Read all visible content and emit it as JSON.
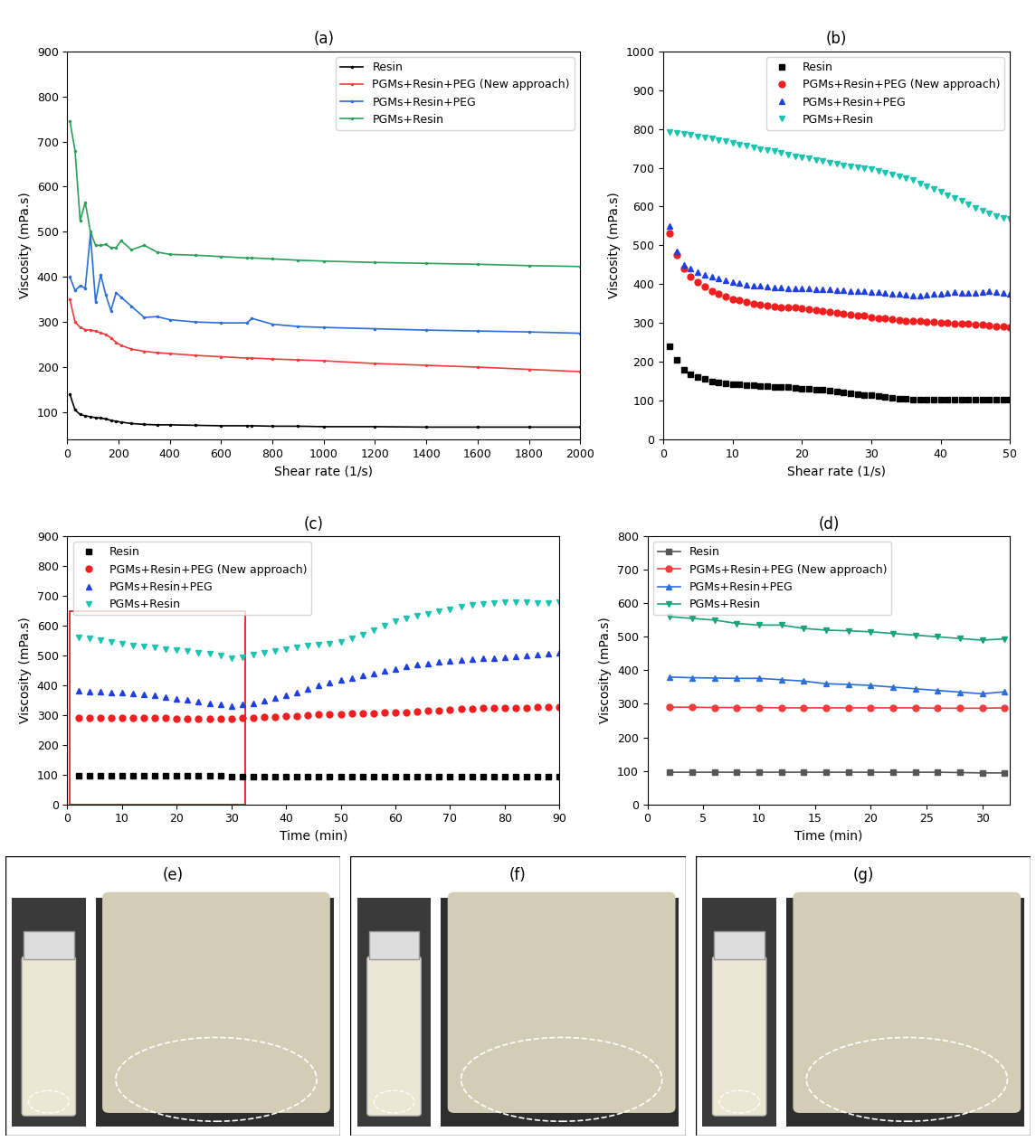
{
  "chart_data": [
    {
      "type": "line",
      "title": "(a)",
      "xlabel": "Shear rate (1/s)",
      "ylabel": "Viscosity (mPa.s)",
      "xlim": [
        0,
        2000
      ],
      "xticks": [
        0,
        200,
        400,
        600,
        800,
        1000,
        1200,
        1400,
        1600,
        1800,
        2000
      ],
      "ylim": [
        40,
        900
      ],
      "yticks": [
        100,
        200,
        300,
        400,
        500,
        600,
        700,
        800,
        900
      ],
      "legend": "upper right",
      "x": [
        10,
        30,
        50,
        70,
        90,
        110,
        130,
        150,
        170,
        190,
        210,
        250,
        300,
        350,
        400,
        500,
        600,
        700,
        720,
        800,
        900,
        1000,
        1200,
        1400,
        1600,
        1800,
        2000
      ],
      "series": [
        {
          "name": "Resin",
          "color": "#000000",
          "marker": "point",
          "values": [
            140,
            105,
            95,
            92,
            90,
            88,
            87,
            85,
            82,
            80,
            78,
            75,
            73,
            72,
            72,
            71,
            70,
            70,
            70,
            69,
            69,
            68,
            68,
            67,
            67,
            67,
            67
          ]
        },
        {
          "name": "PGMs+Resin+PEG (New approach)",
          "color": "#f03c3c",
          "marker": "point",
          "values": [
            350,
            300,
            288,
            283,
            282,
            280,
            276,
            272,
            265,
            255,
            248,
            240,
            235,
            232,
            230,
            226,
            223,
            220,
            220,
            218,
            216,
            214,
            208,
            204,
            200,
            195,
            190
          ]
        },
        {
          "name": "PGMs+Resin+PEG",
          "color": "#2b6fd6",
          "marker": "point",
          "values": [
            400,
            370,
            380,
            375,
            495,
            345,
            405,
            360,
            325,
            365,
            355,
            335,
            310,
            312,
            305,
            300,
            298,
            298,
            308,
            295,
            290,
            288,
            285,
            282,
            280,
            278,
            275
          ]
        },
        {
          "name": "PGMs+Resin",
          "color": "#2ca05a",
          "marker": "point",
          "values": [
            745,
            680,
            525,
            565,
            500,
            470,
            470,
            472,
            465,
            465,
            480,
            460,
            470,
            455,
            450,
            448,
            445,
            442,
            442,
            440,
            437,
            435,
            432,
            430,
            428,
            425,
            423
          ]
        }
      ]
    },
    {
      "type": "scatter",
      "title": "(b)",
      "xlabel": "Shear rate (1/s)",
      "ylabel": "Viscosity (mPa.s)",
      "xlim": [
        0,
        50
      ],
      "xticks": [
        0,
        10,
        20,
        30,
        40,
        50
      ],
      "ylim": [
        0,
        1000
      ],
      "yticks": [
        0,
        100,
        200,
        300,
        400,
        500,
        600,
        700,
        800,
        900,
        1000
      ],
      "legend": "upper right",
      "x": [
        1,
        2,
        3,
        4,
        5,
        6,
        7,
        8,
        9,
        10,
        11,
        12,
        13,
        14,
        15,
        16,
        17,
        18,
        19,
        20,
        21,
        22,
        23,
        24,
        25,
        26,
        27,
        28,
        29,
        30,
        31,
        32,
        33,
        34,
        35,
        36,
        37,
        38,
        39,
        40,
        41,
        42,
        43,
        44,
        45,
        46,
        47,
        48,
        49,
        50
      ],
      "series": [
        {
          "name": "Resin",
          "color": "#000000",
          "marker": "square",
          "values": [
            240,
            205,
            180,
            168,
            160,
            155,
            150,
            147,
            145,
            143,
            142,
            140,
            139,
            138,
            137,
            136,
            135,
            134,
            133,
            131,
            130,
            128,
            127,
            125,
            123,
            121,
            119,
            117,
            115,
            113,
            111,
            109,
            107,
            105,
            104,
            103,
            102,
            102,
            102,
            102,
            102,
            102,
            102,
            102,
            102,
            102,
            102,
            102,
            102,
            102
          ]
        },
        {
          "name": "PGMs+Resin+PEG (New approach)",
          "color": "#f01e1e",
          "marker": "circle",
          "values": [
            530,
            475,
            440,
            420,
            405,
            393,
            383,
            375,
            368,
            362,
            358,
            354,
            350,
            347,
            345,
            343,
            341,
            340,
            339,
            337,
            335,
            333,
            330,
            328,
            326,
            324,
            322,
            320,
            318,
            315,
            313,
            311,
            310,
            308,
            306,
            305,
            304,
            303,
            302,
            301,
            300,
            299,
            298,
            297,
            296,
            295,
            294,
            292,
            290,
            289
          ]
        },
        {
          "name": "PGMs+Resin+PEG",
          "color": "#1f3fe0",
          "marker": "triangle_up",
          "values": [
            550,
            485,
            450,
            440,
            432,
            425,
            420,
            415,
            410,
            406,
            402,
            399,
            397,
            395,
            393,
            392,
            391,
            390,
            389,
            388,
            388,
            387,
            386,
            386,
            385,
            384,
            383,
            382,
            381,
            380,
            379,
            378,
            376,
            374,
            372,
            371,
            371,
            372,
            374,
            376,
            378,
            379,
            378,
            377,
            378,
            380,
            381,
            380,
            378,
            376
          ]
        },
        {
          "name": "PGMs+Resin",
          "color": "#1ac4b0",
          "marker": "triangle_down",
          "values": [
            793,
            790,
            787,
            784,
            781,
            778,
            775,
            771,
            768,
            764,
            760,
            756,
            752,
            748,
            745,
            742,
            738,
            734,
            730,
            727,
            724,
            721,
            717,
            714,
            710,
            707,
            704,
            701,
            699,
            697,
            693,
            688,
            683,
            679,
            674,
            668,
            660,
            652,
            645,
            638,
            630,
            622,
            614,
            605,
            597,
            590,
            582,
            576,
            571,
            568
          ]
        }
      ]
    },
    {
      "type": "scatter",
      "title": "(c)",
      "xlabel": "Time (min)",
      "ylabel": "Viscosity (mPa.s)",
      "xlim": [
        0,
        90
      ],
      "xticks": [
        0,
        10,
        20,
        30,
        40,
        50,
        60,
        70,
        80,
        90
      ],
      "ylim": [
        0,
        900
      ],
      "yticks": [
        0,
        100,
        200,
        300,
        400,
        500,
        600,
        700,
        800,
        900
      ],
      "legend": "upper left",
      "x": [
        2,
        4,
        6,
        8,
        10,
        12,
        14,
        16,
        18,
        20,
        22,
        24,
        26,
        28,
        30,
        32,
        34,
        36,
        38,
        40,
        42,
        44,
        46,
        48,
        50,
        52,
        54,
        56,
        58,
        60,
        62,
        64,
        66,
        68,
        70,
        72,
        74,
        76,
        78,
        80,
        82,
        84,
        86,
        88,
        90
      ],
      "series": [
        {
          "name": "Resin",
          "color": "#000000",
          "marker": "square",
          "values": [
            97,
            97,
            97,
            97,
            97,
            97,
            97,
            96,
            96,
            96,
            96,
            96,
            96,
            95,
            94,
            94,
            94,
            94,
            94,
            94,
            94,
            94,
            94,
            94,
            94,
            93,
            93,
            93,
            93,
            93,
            93,
            93,
            93,
            93,
            93,
            93,
            93,
            93,
            93,
            93,
            93,
            93,
            93,
            93,
            93
          ]
        },
        {
          "name": "PGMs+Resin+PEG (New approach)",
          "color": "#f01e1e",
          "marker": "circle",
          "values": [
            291,
            290,
            290,
            290,
            290,
            290,
            289,
            289,
            289,
            288,
            288,
            288,
            288,
            288,
            288,
            289,
            290,
            292,
            294,
            296,
            298,
            300,
            302,
            303,
            304,
            305,
            306,
            307,
            308,
            309,
            310,
            312,
            314,
            316,
            318,
            320,
            322,
            323,
            324,
            324,
            325,
            325,
            326,
            326,
            326
          ]
        },
        {
          "name": "PGMs+Resin+PEG",
          "color": "#1f3fe0",
          "marker": "triangle_up",
          "values": [
            380,
            378,
            377,
            376,
            375,
            372,
            370,
            365,
            360,
            355,
            350,
            345,
            340,
            335,
            330,
            335,
            340,
            348,
            356,
            365,
            375,
            388,
            400,
            410,
            418,
            425,
            432,
            440,
            448,
            455,
            462,
            468,
            474,
            478,
            482,
            485,
            487,
            490,
            492,
            495,
            498,
            500,
            503,
            506,
            508
          ]
        },
        {
          "name": "PGMs+Resin",
          "color": "#1ac4b0",
          "marker": "triangle_down",
          "values": [
            560,
            556,
            551,
            545,
            538,
            533,
            530,
            527,
            522,
            518,
            515,
            510,
            505,
            500,
            492,
            495,
            502,
            508,
            514,
            520,
            526,
            532,
            536,
            540,
            546,
            556,
            570,
            585,
            600,
            615,
            625,
            632,
            640,
            648,
            656,
            664,
            670,
            674,
            677,
            678,
            679,
            678,
            677,
            676,
            680
          ]
        }
      ]
    },
    {
      "type": "line",
      "title": "(d)",
      "xlabel": "Time (min)",
      "ylabel": "Viscosity (mPa.s)",
      "xlim": [
        0,
        32.5
      ],
      "xticks": [
        0,
        5,
        10,
        15,
        20,
        25,
        30
      ],
      "ylim": [
        0,
        800
      ],
      "yticks": [
        0,
        100,
        200,
        300,
        400,
        500,
        600,
        700,
        800
      ],
      "legend": "upper left",
      "x": [
        2,
        4,
        6,
        8,
        10,
        12,
        14,
        16,
        18,
        20,
        22,
        24,
        26,
        28,
        30,
        32
      ],
      "series": [
        {
          "name": "Resin",
          "color": "#555555",
          "marker": "square",
          "values": [
            96,
            96,
            96,
            96,
            96,
            96,
            96,
            96,
            96,
            96,
            96,
            96,
            96,
            95,
            94,
            94
          ]
        },
        {
          "name": "PGMs+Resin+PEG (New approach)",
          "color": "#f03c3c",
          "marker": "circle",
          "values": [
            290,
            290,
            289,
            289,
            289,
            288,
            288,
            288,
            288,
            288,
            288,
            288,
            287,
            287,
            287,
            288
          ]
        },
        {
          "name": "PGMs+Resin+PEG",
          "color": "#2b6fd6",
          "marker": "triangle_up",
          "values": [
            380,
            378,
            377,
            376,
            376,
            372,
            368,
            360,
            358,
            355,
            350,
            345,
            340,
            335,
            330,
            336
          ]
        },
        {
          "name": "PGMs+Resin",
          "color": "#1aa37a",
          "marker": "triangle_down",
          "values": [
            560,
            555,
            550,
            540,
            535,
            535,
            525,
            520,
            518,
            515,
            510,
            505,
            500,
            495,
            490,
            494
          ]
        }
      ]
    }
  ],
  "panels": [
    "(e)",
    "(f)",
    "(g)"
  ]
}
